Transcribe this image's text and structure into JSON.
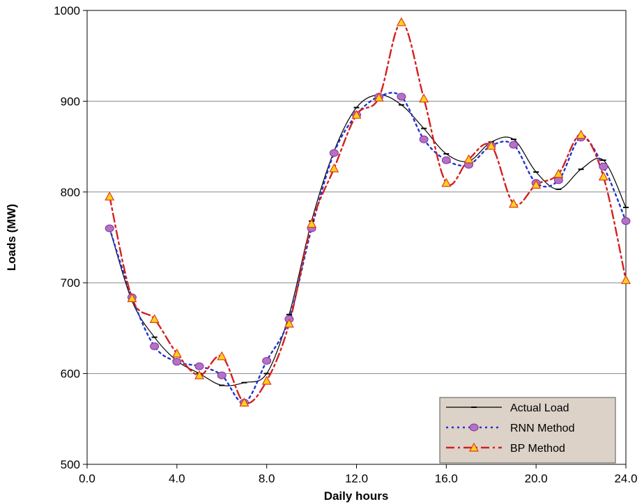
{
  "chart_data": {
    "type": "line",
    "title": "",
    "xlabel": "Daily hours",
    "ylabel": "Loads (MW)",
    "xlim": [
      0,
      24
    ],
    "ylim": [
      500,
      1000
    ],
    "xticks": [
      0,
      4,
      8,
      12,
      16,
      20,
      24
    ],
    "xtick_labels": [
      "0.0",
      "4.0",
      "8.0",
      "12.0",
      "16.0",
      "20.0",
      "24.0"
    ],
    "yticks": [
      500,
      600,
      700,
      800,
      900,
      1000
    ],
    "ytick_labels": [
      "500",
      "600",
      "700",
      "800",
      "900",
      "1000"
    ],
    "grid": "horizontal",
    "legend_position": "bottom-right",
    "series": [
      {
        "name": "Actual Load",
        "color": "#000000",
        "style": "solid",
        "marker": "dash",
        "x": [
          1,
          2,
          3,
          4,
          5,
          6,
          7,
          8,
          9,
          10,
          11,
          12,
          13,
          14,
          15,
          16,
          17,
          18,
          19,
          20,
          21,
          22,
          23,
          24
        ],
        "values": [
          760,
          680,
          640,
          614,
          600,
          587,
          590,
          600,
          665,
          768,
          845,
          893,
          907,
          896,
          870,
          842,
          834,
          855,
          858,
          822,
          803,
          825,
          835,
          783
        ]
      },
      {
        "name": "RNN Method",
        "color": "#2233cc",
        "style": "dotted",
        "marker": "circle",
        "x": [
          1,
          2,
          3,
          4,
          5,
          6,
          7,
          8,
          9,
          10,
          11,
          12,
          13,
          14,
          15,
          16,
          17,
          18,
          19,
          20,
          21,
          22,
          23,
          24
        ],
        "values": [
          760,
          684,
          630,
          613,
          608,
          598,
          568,
          614,
          660,
          760,
          843,
          885,
          905,
          905,
          858,
          835,
          830,
          851,
          852,
          810,
          813,
          860,
          828,
          768
        ]
      },
      {
        "name": "BP Method",
        "color": "#d42020",
        "style": "dashdot",
        "marker": "triangle",
        "x": [
          1,
          2,
          3,
          4,
          5,
          6,
          7,
          8,
          9,
          10,
          11,
          12,
          13,
          14,
          15,
          16,
          17,
          18,
          19,
          20,
          21,
          22,
          23,
          24
        ],
        "values": [
          795,
          683,
          660,
          622,
          598,
          619,
          568,
          592,
          655,
          765,
          826,
          885,
          904,
          987,
          903,
          810,
          836,
          851,
          787,
          808,
          820,
          863,
          817,
          703
        ]
      }
    ]
  }
}
